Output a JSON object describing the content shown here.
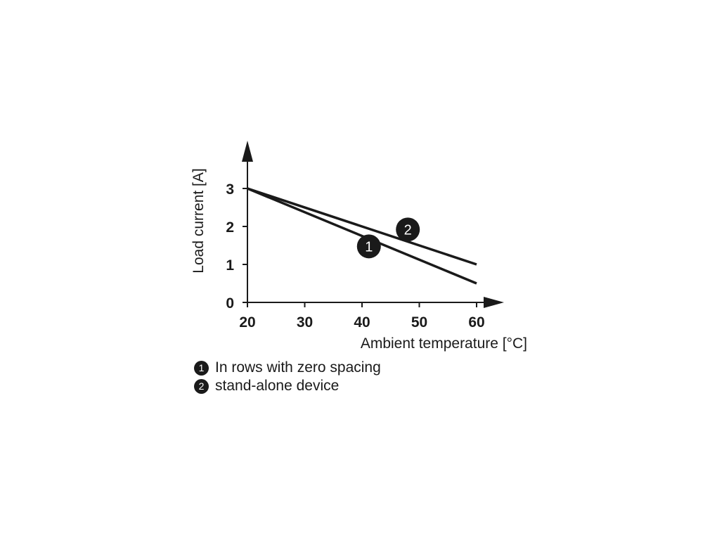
{
  "chart_data": {
    "type": "line",
    "xlabel": "Ambient temperature [°C]",
    "ylabel": "Load current [A]",
    "xlim": [
      20,
      60
    ],
    "ylim": [
      0,
      3
    ],
    "xticks": [
      20,
      30,
      40,
      50,
      60
    ],
    "yticks": [
      0,
      1,
      2,
      3
    ],
    "grid": false,
    "series": [
      {
        "marker": "1",
        "x": [
          20,
          60
        ],
        "y": [
          3,
          0.5
        ]
      },
      {
        "marker": "2",
        "x": [
          20,
          60
        ],
        "y": [
          3,
          1.0
        ]
      }
    ],
    "legend": [
      {
        "marker": "1",
        "label": "In rows with zero spacing"
      },
      {
        "marker": "2",
        "label": "stand-alone device"
      }
    ]
  }
}
